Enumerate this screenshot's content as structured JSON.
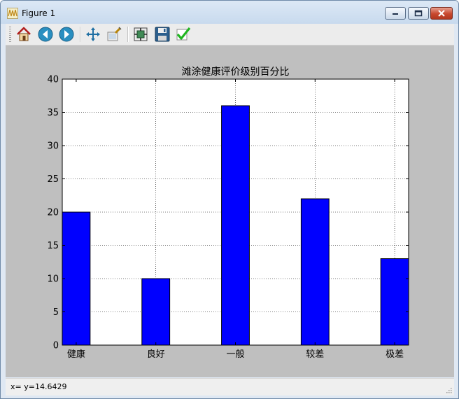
{
  "window": {
    "title": "Figure 1"
  },
  "toolbar": {
    "tools": [
      {
        "name": "home-icon"
      },
      {
        "name": "back-arrow-icon"
      },
      {
        "name": "forward-arrow-icon"
      },
      {
        "name": "pan-move-icon"
      },
      {
        "name": "zoom-rect-icon"
      },
      {
        "name": "subplots-config-icon"
      },
      {
        "name": "save-disk-icon"
      },
      {
        "name": "edit-checkmark-icon"
      }
    ]
  },
  "status": {
    "text": "x= y=14.6429"
  },
  "colors": {
    "bar": "#0000ff",
    "canvas": "#bfbfbf"
  },
  "chart_data": {
    "type": "bar",
    "title": "滩涂健康评价级别百分比",
    "categories": [
      "健康",
      "良好",
      "一般",
      "较差",
      "极差"
    ],
    "values": [
      20,
      10,
      36,
      22,
      13
    ],
    "ylim": [
      0,
      40
    ],
    "yticks": [
      "0",
      "5",
      "10",
      "15",
      "20",
      "25",
      "30",
      "35",
      "40"
    ],
    "grid": true
  }
}
